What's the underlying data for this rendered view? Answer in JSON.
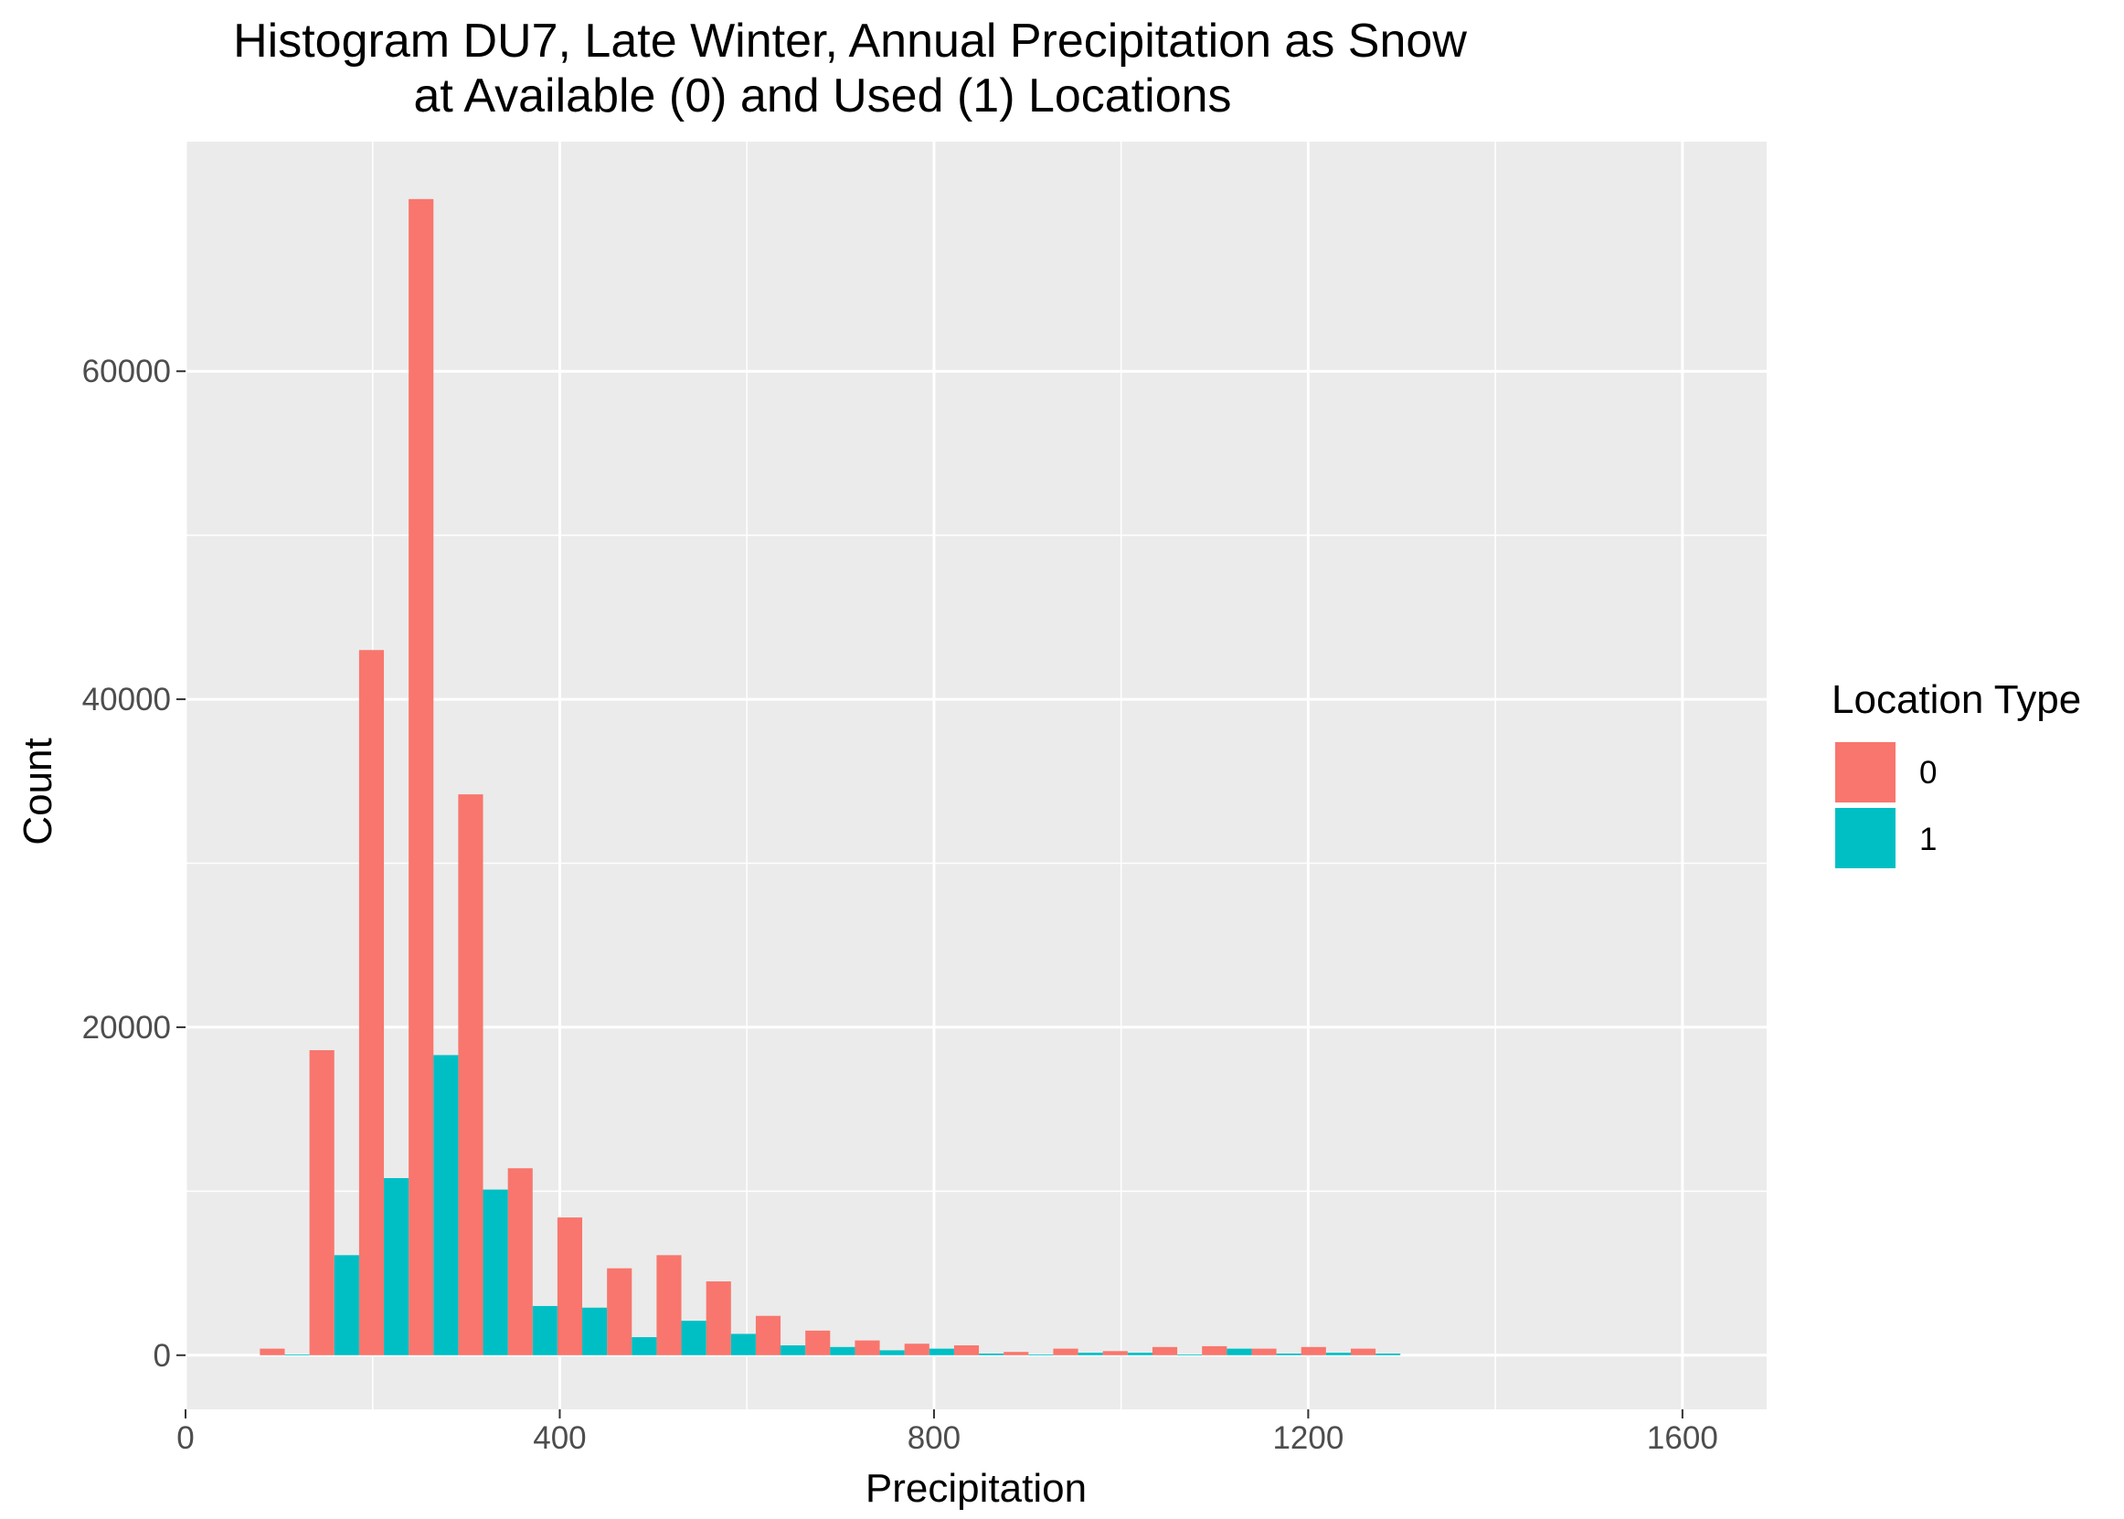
{
  "chart_data": {
    "type": "bar",
    "title_line1": "Histogram DU7, Late Winter, Annual Precipitation as Snow",
    "title_line2": "at Available (0) and Used (1) Locations",
    "xlabel": "Precipitation",
    "ylabel": "Count",
    "xlim": [
      0,
      1690
    ],
    "ylim": [
      -3300,
      74000
    ],
    "x_ticks": [
      0,
      400,
      800,
      1200,
      1600
    ],
    "x_tick_labels": [
      "0",
      "400",
      "800",
      "1200",
      "1600"
    ],
    "y_ticks": [
      0,
      20000,
      40000,
      60000
    ],
    "y_tick_labels": [
      "0",
      "20000",
      "40000",
      "60000"
    ],
    "bin_width": 53,
    "bin_centers": [
      106,
      159,
      212,
      265,
      318,
      371,
      424,
      477,
      530,
      583,
      636,
      689,
      742,
      795,
      848,
      901,
      954,
      1007,
      1060,
      1113,
      1166,
      1219,
      1272
    ],
    "grid": true,
    "legend": {
      "title": "Location Type",
      "placement": "right",
      "entries": [
        "0",
        "1"
      ]
    },
    "series": [
      {
        "name": "0",
        "color": "#F8766D",
        "values": [
          400,
          18600,
          43000,
          70500,
          34200,
          11400,
          8400,
          5300,
          6100,
          4500,
          2400,
          1500,
          900,
          700,
          600,
          200,
          400,
          250,
          500,
          550,
          400,
          500,
          400
        ]
      },
      {
        "name": "1",
        "color": "#00BFC4",
        "values": [
          50,
          6100,
          10800,
          18300,
          10100,
          3000,
          2900,
          1100,
          2100,
          1300,
          600,
          500,
          300,
          400,
          100,
          50,
          150,
          150,
          50,
          400,
          100,
          150,
          100
        ]
      }
    ]
  }
}
